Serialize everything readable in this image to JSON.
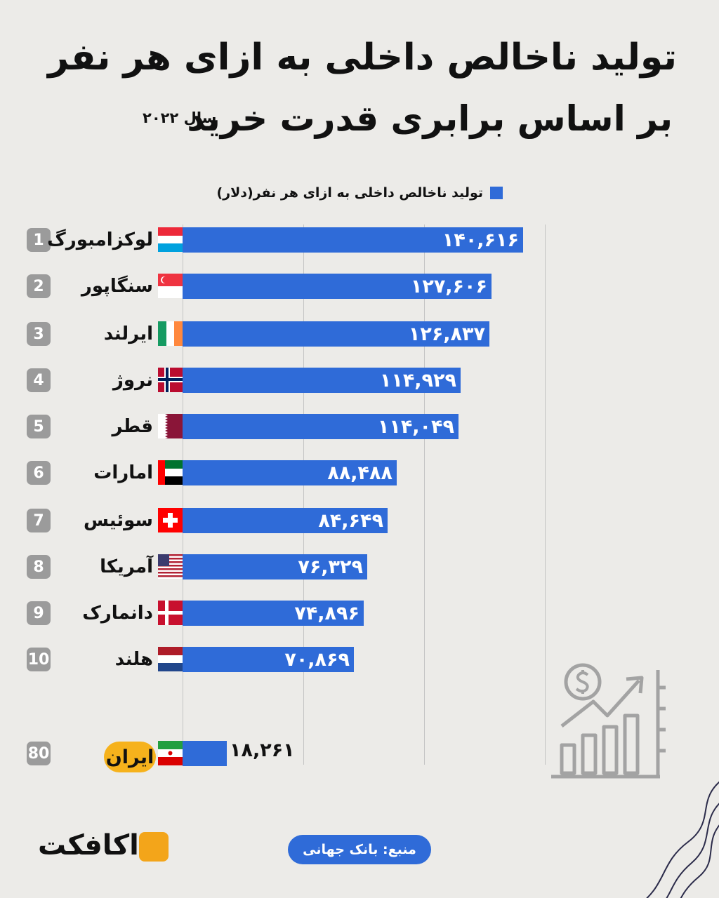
{
  "header": {
    "title_line1": "تولید ناخالص داخلی به ازای هر نفر",
    "title_line2": "بر اساس برابری قدرت خرید",
    "year_label": "سال ۲۰۲۲"
  },
  "legend": {
    "label": "تولید ناخالص داخلی به ازای هر نفر(دلار)",
    "color": "#2f6bd8"
  },
  "chart_data": {
    "type": "bar",
    "orientation": "horizontal",
    "categories": [
      "لوکزامبورگ",
      "سنگاپور",
      "ایرلند",
      "نروژ",
      "قطر",
      "امارات",
      "سوئیس",
      "آمریکا",
      "دانمارک",
      "هلند",
      "ایران"
    ],
    "values": [
      140616,
      127606,
      126837,
      114929,
      114049,
      88488,
      84649,
      76329,
      74896,
      70869,
      18261
    ],
    "value_labels": [
      "۱۴۰,۶۱۶",
      "۱۲۷,۶۰۶",
      "۱۲۶,۸۳۷",
      "۱۱۴,۹۲۹",
      "۱۱۴,۰۴۹",
      "۸۸,۴۸۸",
      "۸۴,۶۴۹",
      "۷۶,۳۲۹",
      "۷۴,۸۹۶",
      "۷۰,۸۶۹",
      "۱۸,۲۶۱"
    ],
    "ranks": [
      "1",
      "2",
      "3",
      "4",
      "5",
      "6",
      "7",
      "8",
      "9",
      "10",
      "80"
    ],
    "series": [
      {
        "name": "تولید ناخالص داخلی به ازای هر نفر(دلار)",
        "color": "#2f6bd8"
      }
    ],
    "title": "تولید ناخالص داخلی به ازای هر نفر بر اساس برابری قدرت خرید",
    "xlim": [
      0,
      150000
    ],
    "grid": true
  },
  "flags": [
    "luxembourg-flag",
    "singapore-flag",
    "ireland-flag",
    "norway-flag",
    "qatar-flag",
    "uae-flag",
    "switzerland-flag",
    "usa-flag",
    "denmark-flag",
    "netherlands-flag",
    "iran-flag"
  ],
  "highlight": {
    "country": "ایران",
    "color": "#f6b21c"
  },
  "footer": {
    "source": "منبع: بانک جهانی",
    "logo_text": "اکافکت",
    "logo_color": "#f3a51a"
  }
}
